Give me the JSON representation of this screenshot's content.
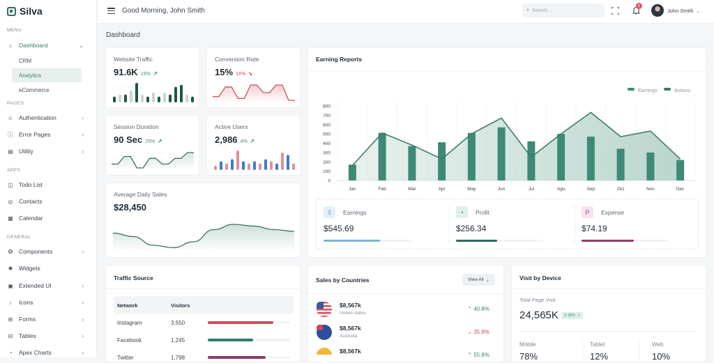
{
  "app": {
    "name": "Silva"
  },
  "sidebar": {
    "sections": [
      {
        "label": "MENU"
      },
      {
        "label": "PAGES"
      },
      {
        "label": "APPS"
      },
      {
        "label": "GENERAL"
      }
    ],
    "dashboard": {
      "label": "Dashboard",
      "icon": "home-icon",
      "children": [
        {
          "label": "CRM"
        },
        {
          "label": "Analytics",
          "selected": true
        },
        {
          "label": "eCommerce"
        }
      ]
    },
    "pages": [
      {
        "label": "Authentication",
        "icon": "users-icon",
        "has_children": true
      },
      {
        "label": "Error Pages",
        "icon": "alert-circle-icon",
        "has_children": true
      },
      {
        "label": "Utility",
        "icon": "file-icon",
        "has_children": true
      }
    ],
    "apps": [
      {
        "label": "Todo List",
        "icon": "columns-icon"
      },
      {
        "label": "Contacts",
        "icon": "contact-icon"
      },
      {
        "label": "Calendar",
        "icon": "calendar-icon"
      }
    ],
    "general": [
      {
        "label": "Components",
        "icon": "components-icon",
        "has_children": true
      },
      {
        "label": "Widgets",
        "icon": "widgets-icon",
        "has_children": false
      },
      {
        "label": "Extended UI",
        "icon": "chip-icon",
        "has_children": true
      },
      {
        "label": "Icons",
        "icon": "award-icon",
        "has_children": true
      },
      {
        "label": "Forms",
        "icon": "forms-icon",
        "has_children": true
      },
      {
        "label": "Tables",
        "icon": "table-icon",
        "has_children": true
      },
      {
        "label": "Apex Charts",
        "icon": "chart-icon",
        "has_children": true
      }
    ]
  },
  "topbar": {
    "greeting": "Good Morning, John Smith",
    "search_placeholder": "Search...",
    "notification_count": "9",
    "user_name": "John Smith"
  },
  "page": {
    "title": "Dashboard"
  },
  "kpis": {
    "website_traffic": {
      "label": "Website Traffic",
      "value": "91.6K",
      "delta": "15%",
      "trend": "up",
      "bars": [
        3,
        4,
        4,
        6,
        10,
        4,
        3,
        5,
        3,
        5,
        4,
        8,
        9,
        4,
        3
      ]
    },
    "conversion_rate": {
      "label": "Conversion Rate",
      "value": "15%",
      "delta": "10%",
      "trend": "down",
      "line": [
        2,
        2,
        7,
        7,
        1,
        1,
        8,
        8,
        4,
        4,
        8,
        8,
        0,
        0
      ]
    },
    "session_duration": {
      "label": "Session Duration",
      "value": "90 Sec",
      "delta": "25%",
      "trend": "up",
      "line": [
        2,
        2,
        6,
        6,
        0,
        0,
        5,
        5,
        2,
        2,
        5,
        5,
        8,
        8
      ]
    },
    "active_users": {
      "label": "Active Users",
      "value": "2,986",
      "delta": "4%",
      "trend": "up",
      "bars": [
        2,
        4,
        3,
        5,
        9,
        4,
        3,
        4,
        3,
        5,
        4,
        3,
        8,
        7,
        3
      ]
    },
    "avg_daily_sales": {
      "label": "Average Daily Sales",
      "value": "$28,450",
      "curve": [
        4.5,
        3.5,
        1,
        0.3,
        2,
        5.5,
        7,
        6.5,
        5.5,
        5
      ]
    }
  },
  "earning_reports": {
    "title": "Earning Reports",
    "stats": [
      {
        "label": "Earnings",
        "value": "$545.69",
        "icon": "dollar-icon",
        "progress": 0.65,
        "color": "#7fb3d0"
      },
      {
        "label": "Profit",
        "value": "$256.34",
        "icon": "pie-chart-icon",
        "progress": 0.47,
        "color": "#2f6b5e"
      },
      {
        "label": "Expense",
        "value": "$74.19",
        "icon": "paypal-icon",
        "progress": 0.6,
        "color": "#8a3b66"
      }
    ]
  },
  "chart_data": {
    "type": "bar",
    "title": "Earning Reports",
    "categories": [
      "Jan",
      "Feb",
      "Mar",
      "Apr",
      "May",
      "Jun",
      "Jul",
      "Agu",
      "Sep",
      "Oct",
      "Nov",
      "Dec"
    ],
    "series": [
      {
        "name": "Earnings",
        "type": "bar",
        "values": [
          170,
          510,
          370,
          410,
          510,
          570,
          420,
          500,
          470,
          340,
          300,
          220
        ],
        "color": "#3e8a77"
      },
      {
        "name": "Actions",
        "type": "area",
        "values": [
          160,
          510,
          380,
          230,
          500,
          670,
          250,
          500,
          730,
          470,
          530,
          230
        ],
        "color": "#3e7a6b"
      }
    ],
    "yticks": [
      0,
      100,
      200,
      300,
      400,
      500,
      600,
      700,
      800
    ],
    "ylim": [
      0,
      800
    ],
    "grid": true,
    "legend": "top-right"
  },
  "traffic_source": {
    "title": "Traffic Source",
    "columns": [
      "Network",
      "Visitors"
    ],
    "rows": [
      {
        "network": "Instagram",
        "visitors": "3,550",
        "progress": 0.8,
        "color": "#cf4d5e"
      },
      {
        "network": "Facebook",
        "visitors": "1,245",
        "progress": 0.55,
        "color": "#2f7d6a"
      },
      {
        "network": "Twitter",
        "visitors": "1,798",
        "progress": 0.7,
        "color": "#8a3b66"
      }
    ]
  },
  "sales_by_countries": {
    "title": "Sales by Countries",
    "view_all_label": "View All",
    "items": [
      {
        "amount": "$8,567k",
        "country": "United states",
        "change": "40.8%",
        "trend": "up",
        "flag": "us-flag-icon"
      },
      {
        "amount": "$8,567k",
        "country": "Australia",
        "change": "35.8%",
        "trend": "down",
        "flag": "au-flag-icon"
      },
      {
        "amount": "$8,567k",
        "country": "India",
        "change": "55.8%",
        "trend": "up",
        "flag": "in-flag-icon"
      }
    ]
  },
  "visit_by_device": {
    "title": "Visit by Device",
    "total_label": "Total Page Visit",
    "total_value": "24,565K",
    "total_delta": "3.18%",
    "devices": [
      {
        "label": "Mobile",
        "value": "78%"
      },
      {
        "label": "Tablet",
        "value": "12%"
      },
      {
        "label": "Web",
        "value": "10%"
      }
    ]
  }
}
